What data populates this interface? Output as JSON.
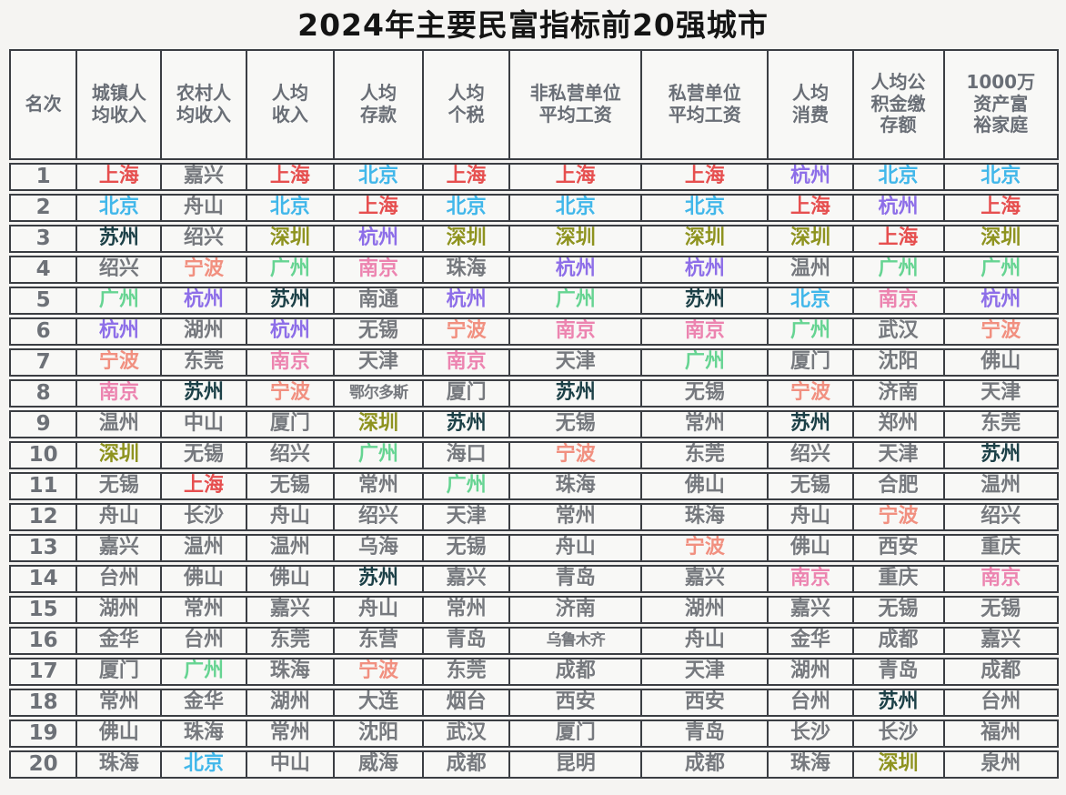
{
  "chart_data": {
    "type": "table",
    "title": "2024年主要民富指标前20强城市",
    "columns": [
      "名次",
      "城镇人\n均收入",
      "农村人\n均收入",
      "人均\n收入",
      "人均\n存款",
      "人均\n个税",
      "非私营单位\n平均工资",
      "私营单位\n平均工资",
      "人均\n消费",
      "人均公\n积金缴\n存额",
      "1000万\n资产富\n裕家庭"
    ],
    "city_colors": {
      "上海": "#e64f4f",
      "北京": "#41b7ea",
      "苏州": "#1c4047",
      "深圳": "#8e931f",
      "杭州": "#8d6ee8",
      "广州": "#66d492",
      "南京": "#ec84b0",
      "宁波": "#f19080"
    },
    "default_city_color": "#76797e",
    "rows": [
      {
        "rank": "1",
        "cells": [
          "上海",
          "嘉兴",
          "上海",
          "北京",
          "上海",
          "上海",
          "上海",
          "杭州",
          "北京",
          "北京"
        ]
      },
      {
        "rank": "2",
        "cells": [
          "北京",
          "舟山",
          "北京",
          "上海",
          "北京",
          "北京",
          "北京",
          "上海",
          "杭州",
          "上海"
        ]
      },
      {
        "rank": "3",
        "cells": [
          "苏州",
          "绍兴",
          "深圳",
          "杭州",
          "深圳",
          "深圳",
          "深圳",
          "深圳",
          "上海",
          "深圳"
        ]
      },
      {
        "rank": "4",
        "cells": [
          "绍兴",
          "宁波",
          "广州",
          "南京",
          "珠海",
          "杭州",
          "杭州",
          "温州",
          "广州",
          "广州"
        ]
      },
      {
        "rank": "5",
        "cells": [
          "广州",
          "杭州",
          "苏州",
          "南通",
          "杭州",
          "广州",
          "苏州",
          "北京",
          "南京",
          "杭州"
        ]
      },
      {
        "rank": "6",
        "cells": [
          "杭州",
          "湖州",
          "杭州",
          "无锡",
          "宁波",
          "南京",
          "南京",
          "广州",
          "武汉",
          "宁波"
        ]
      },
      {
        "rank": "7",
        "cells": [
          "宁波",
          "东莞",
          "南京",
          "天津",
          "南京",
          "天津",
          "广州",
          "厦门",
          "沈阳",
          "佛山"
        ]
      },
      {
        "rank": "8",
        "cells": [
          "南京",
          "苏州",
          "宁波",
          "鄂尔多斯",
          "厦门",
          "苏州",
          "无锡",
          "宁波",
          "济南",
          "天津"
        ]
      },
      {
        "rank": "9",
        "cells": [
          "温州",
          "中山",
          "厦门",
          "深圳",
          "苏州",
          "无锡",
          "常州",
          "苏州",
          "郑州",
          "东莞"
        ]
      },
      {
        "rank": "10",
        "cells": [
          "深圳",
          "无锡",
          "绍兴",
          "广州",
          "海口",
          "宁波",
          "东莞",
          "绍兴",
          "天津",
          "苏州"
        ]
      },
      {
        "rank": "11",
        "cells": [
          "无锡",
          "上海",
          "无锡",
          "常州",
          "广州",
          "珠海",
          "佛山",
          "无锡",
          "合肥",
          "温州"
        ]
      },
      {
        "rank": "12",
        "cells": [
          "舟山",
          "长沙",
          "舟山",
          "绍兴",
          "天津",
          "常州",
          "珠海",
          "舟山",
          "宁波",
          "绍兴"
        ]
      },
      {
        "rank": "13",
        "cells": [
          "嘉兴",
          "温州",
          "温州",
          "乌海",
          "无锡",
          "舟山",
          "宁波",
          "佛山",
          "西安",
          "重庆"
        ]
      },
      {
        "rank": "14",
        "cells": [
          "台州",
          "佛山",
          "佛山",
          "苏州",
          "嘉兴",
          "青岛",
          "嘉兴",
          "南京",
          "重庆",
          "南京"
        ]
      },
      {
        "rank": "15",
        "cells": [
          "湖州",
          "常州",
          "嘉兴",
          "舟山",
          "常州",
          "济南",
          "湖州",
          "嘉兴",
          "无锡",
          "无锡"
        ]
      },
      {
        "rank": "16",
        "cells": [
          "金华",
          "台州",
          "东莞",
          "东营",
          "青岛",
          "乌鲁木齐",
          "舟山",
          "金华",
          "成都",
          "嘉兴"
        ]
      },
      {
        "rank": "17",
        "cells": [
          "厦门",
          "广州",
          "珠海",
          "宁波",
          "东莞",
          "成都",
          "天津",
          "湖州",
          "青岛",
          "成都"
        ]
      },
      {
        "rank": "18",
        "cells": [
          "常州",
          "金华",
          "湖州",
          "大连",
          "烟台",
          "西安",
          "西安",
          "台州",
          "苏州",
          "台州"
        ]
      },
      {
        "rank": "19",
        "cells": [
          "佛山",
          "珠海",
          "常州",
          "沈阳",
          "武汉",
          "厦门",
          "青岛",
          "长沙",
          "长沙",
          "福州"
        ]
      },
      {
        "rank": "20",
        "cells": [
          "珠海",
          "北京",
          "中山",
          "威海",
          "成都",
          "昆明",
          "成都",
          "珠海",
          "深圳",
          "泉州"
        ]
      }
    ]
  }
}
